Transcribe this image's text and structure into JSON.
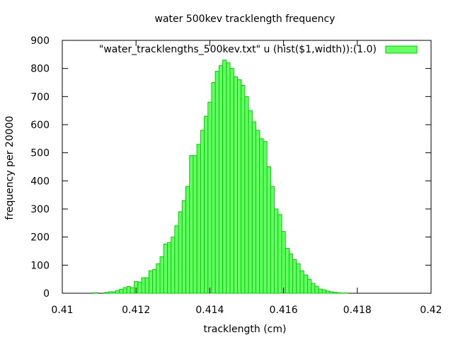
{
  "chart_data": {
    "type": "bar",
    "title": "water 500kev tracklength frequency",
    "xlabel": "tracklength (cm)",
    "ylabel": "frequency per 20000",
    "xlim": [
      0.41,
      0.42
    ],
    "ylim": [
      0,
      900
    ],
    "x_ticks": [
      "0.41",
      "0.412",
      "0.414",
      "0.416",
      "0.418",
      "0.42"
    ],
    "y_ticks": [
      "0",
      "100",
      "200",
      "300",
      "400",
      "500",
      "600",
      "700",
      "800",
      "900"
    ],
    "legend": {
      "placement": "top-right",
      "label": "\"water_tracklengths_500kev.txt\" u (hist($1,width)):(1.0)"
    },
    "bar_fill": "#66ff66",
    "bar_stroke": "#00cc00",
    "bin_width": 0.0001,
    "series": [
      {
        "x": [
          0.4109,
          0.4112,
          0.4113,
          0.4114,
          0.4115,
          0.4116,
          0.4117,
          0.4118,
          0.4119,
          0.412,
          0.4121,
          0.4122,
          0.4123,
          0.4124,
          0.4125,
          0.4126,
          0.4127,
          0.4128,
          0.4129,
          0.413,
          0.4131,
          0.4132,
          0.4133,
          0.4134,
          0.4135,
          0.4136,
          0.4137,
          0.4138,
          0.4139,
          0.414,
          0.4141,
          0.4142,
          0.4143,
          0.4144,
          0.4145,
          0.4146,
          0.4147,
          0.4148,
          0.4149,
          0.415,
          0.4151,
          0.4152,
          0.4153,
          0.4154,
          0.4155,
          0.4156,
          0.4157,
          0.4158,
          0.4159,
          0.416,
          0.4161,
          0.4162,
          0.4163,
          0.4164,
          0.4165,
          0.4166,
          0.4167,
          0.4168,
          0.4169,
          0.417,
          0.4171,
          0.4172,
          0.4173,
          0.4174,
          0.4175,
          0.4176,
          0.4177
        ],
        "values": [
          2,
          3,
          5,
          5,
          10,
          14,
          20,
          24,
          20,
          42,
          40,
          55,
          55,
          80,
          85,
          105,
          130,
          175,
          180,
          200,
          240,
          290,
          330,
          380,
          490,
          490,
          530,
          580,
          630,
          680,
          750,
          790,
          810,
          830,
          820,
          800,
          770,
          760,
          740,
          700,
          650,
          610,
          580,
          550,
          540,
          450,
          380,
          300,
          280,
          220,
          160,
          140,
          120,
          105,
          80,
          65,
          50,
          35,
          25,
          15,
          12,
          8,
          5,
          3,
          2,
          1,
          1
        ]
      }
    ]
  }
}
